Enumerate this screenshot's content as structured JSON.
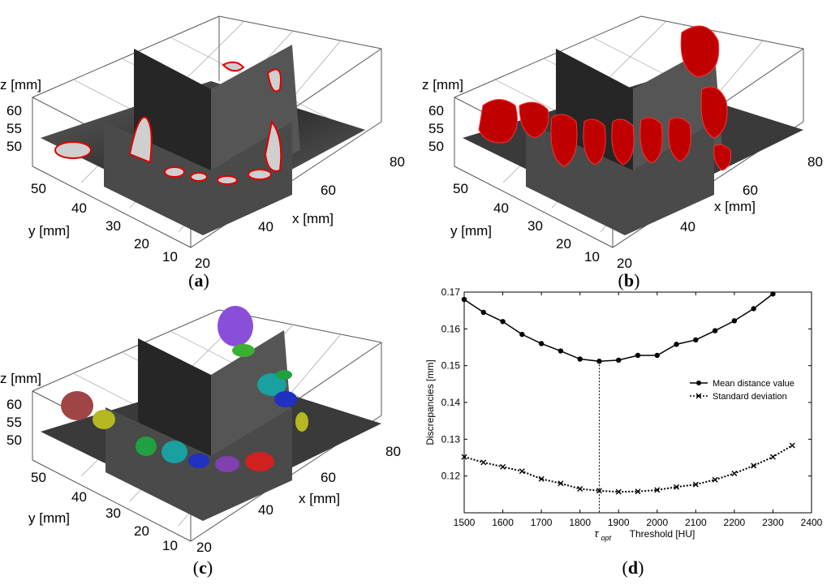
{
  "panels": {
    "a": {
      "caption_open": "(",
      "caption_letter": "a",
      "caption_close": ")",
      "z_label": "z [mm]",
      "y_label": "y [mm]",
      "x_label": "x [mm]",
      "z_ticks": [
        "60",
        "55",
        "50"
      ],
      "y_ticks": [
        "50",
        "40",
        "30",
        "20",
        "10"
      ],
      "x_ticks": [
        "20",
        "40",
        "60",
        "80"
      ]
    },
    "b": {
      "caption_open": "(",
      "caption_letter": "b",
      "caption_close": ")",
      "z_label": "z [mm]",
      "y_label": "y [mm]",
      "x_label": "x [mm]",
      "z_ticks": [
        "60",
        "55",
        "50"
      ],
      "y_ticks": [
        "50",
        "40",
        "30",
        "20",
        "10"
      ],
      "x_ticks": [
        "20",
        "40",
        "60",
        "80"
      ]
    },
    "c": {
      "caption_open": "(",
      "caption_letter": "c",
      "caption_close": ")",
      "z_label": "z [mm]",
      "y_label": "y [mm]",
      "x_label": "x [mm]",
      "z_ticks": [
        "60",
        "55",
        "50"
      ],
      "y_ticks": [
        "50",
        "40",
        "30",
        "20",
        "10"
      ],
      "x_ticks": [
        "20",
        "40",
        "60",
        "80"
      ]
    },
    "d": {
      "caption_open": "(",
      "caption_letter": "d",
      "caption_close": ")"
    }
  },
  "chart_data": {
    "type": "line",
    "xlabel": "Threshold [HU]",
    "ylabel": "Discrepancies [mm]",
    "xlim": [
      1500,
      2400
    ],
    "ylim": [
      0.11,
      0.17
    ],
    "x_ticks": [
      1500,
      1600,
      1700,
      1800,
      1900,
      2000,
      2100,
      2200,
      2300,
      2400
    ],
    "y_ticks": [
      0.12,
      0.13,
      0.14,
      0.15,
      0.16,
      0.17
    ],
    "y_tick_labels": [
      "0.12",
      "0.13",
      "0.14",
      "0.15",
      "0.16",
      "0.17"
    ],
    "legend_position": "right",
    "marker_annotation": {
      "x": 1850,
      "label": "τ",
      "subscript": "opt"
    },
    "series": [
      {
        "name": "Mean distance value",
        "marker": "dot",
        "line": "solid",
        "x": [
          1500,
          1550,
          1600,
          1650,
          1700,
          1750,
          1800,
          1850,
          1900,
          1950,
          2000,
          2050,
          2100,
          2150,
          2200,
          2250,
          2300
        ],
        "values": [
          0.168,
          0.1645,
          0.162,
          0.1585,
          0.156,
          0.154,
          0.1518,
          0.1512,
          0.1515,
          0.1528,
          0.1528,
          0.1558,
          0.157,
          0.1595,
          0.1622,
          0.1655,
          0.1695
        ]
      },
      {
        "name": "Standard deviation",
        "marker": "x",
        "line": "dotted",
        "x": [
          1500,
          1550,
          1600,
          1650,
          1700,
          1750,
          1800,
          1850,
          1900,
          1950,
          2000,
          2050,
          2100,
          2150,
          2200,
          2250,
          2300,
          2350
        ],
        "values": [
          0.1252,
          0.1237,
          0.1225,
          0.1213,
          0.1192,
          0.118,
          0.1165,
          0.116,
          0.1157,
          0.1158,
          0.1162,
          0.117,
          0.1177,
          0.119,
          0.1207,
          0.1228,
          0.1252,
          0.1283
        ]
      }
    ]
  }
}
